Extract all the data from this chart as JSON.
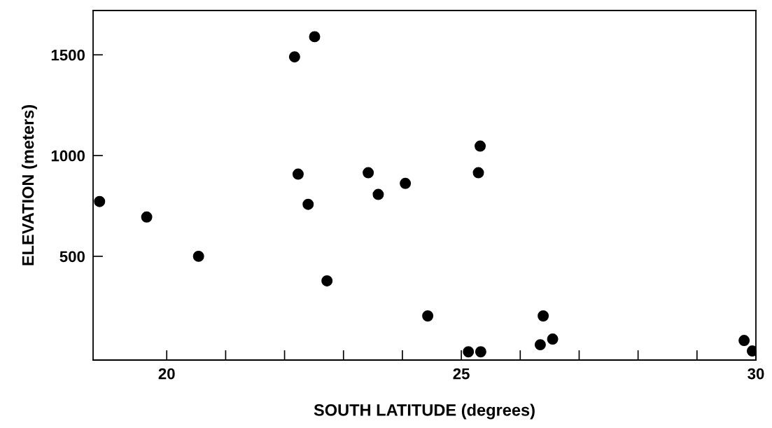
{
  "chart_data": {
    "type": "scatter",
    "xlabel": "SOUTH LATITUDE (degrees)",
    "ylabel": "ELEVATION (meters)",
    "xlim": [
      18.75,
      30
    ],
    "ylim": [
      -15,
      1720
    ],
    "xticks": [
      20,
      {
        "value": 21,
        "label": null
      },
      {
        "value": 22,
        "label": null
      },
      {
        "value": 23,
        "label": null
      },
      {
        "value": 24,
        "label": null
      },
      25,
      {
        "value": 26,
        "label": null
      },
      {
        "value": 27,
        "label": null
      },
      {
        "value": 28,
        "label": null
      },
      {
        "value": 29,
        "label": null
      },
      30
    ],
    "yticks": [
      500,
      1000,
      1500
    ],
    "grid": false,
    "marker": "circle",
    "series": [
      {
        "color": "#000000",
        "x": [
          18.86,
          19.66,
          20.54,
          22.17,
          22.51,
          22.23,
          22.4,
          22.72,
          23.42,
          23.59,
          24.05,
          24.43,
          25.12,
          25.33,
          25.29,
          25.32,
          26.34,
          26.39,
          26.55,
          29.8,
          29.94
        ],
        "values": [
          772,
          695,
          500,
          1490,
          1590,
          908,
          758,
          378,
          915,
          807,
          862,
          204,
          26,
          26,
          915,
          1047,
          61,
          204,
          89,
          82,
          30
        ]
      }
    ]
  }
}
